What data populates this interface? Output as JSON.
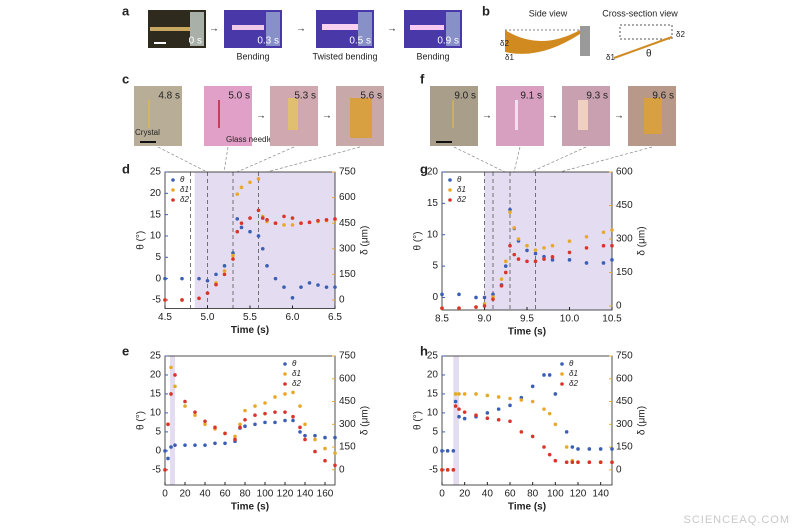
{
  "figure": {
    "a": {
      "label": "a",
      "times": [
        "0 s",
        "0.3 s",
        "0.5 s",
        "0.9 s"
      ],
      "captions": [
        "Bending",
        "Twisted bending",
        "Bending"
      ]
    },
    "b": {
      "label": "b",
      "side": "Side view",
      "cross": "Cross-section view",
      "side_symbols": [
        "δ2",
        "δ1"
      ],
      "cross_symbols": [
        "δ1",
        "θ",
        "δ2"
      ]
    },
    "c": {
      "label": "c",
      "times": [
        "4.8 s",
        "5.0 s",
        "5.3 s",
        "5.6 s"
      ],
      "crystal": "Crystal",
      "needle": "Glass needle"
    },
    "f": {
      "label": "f",
      "times": [
        "9.0 s",
        "9.1 s",
        "9.3 s",
        "9.6 s"
      ]
    },
    "watermark": "SCIENCEAQ.COM"
  },
  "chart_data": [
    {
      "type": "scatter",
      "panel": "d",
      "xlabel": "Time (s)",
      "ylabel": "θ (°)",
      "y2label": "δ (μm)",
      "legend": "upper left",
      "x": [
        4.5,
        4.7,
        4.9,
        5.0,
        5.1,
        5.2,
        5.3,
        5.35,
        5.4,
        5.5,
        5.6,
        5.65,
        5.7,
        5.8,
        5.9,
        6.0,
        6.1,
        6.2,
        6.3,
        6.4,
        6.5
      ],
      "series": [
        {
          "name": "θ",
          "color": "#3a5fb5",
          "values": [
            0,
            0,
            0,
            -0.5,
            1,
            3,
            6,
            14,
            12,
            11,
            10,
            7,
            3,
            0,
            -2,
            -4.5,
            -2,
            -1,
            -1.5,
            -2,
            -2
          ]
        },
        {
          "name": "δ1",
          "color": "#e8a92a",
          "axis": "y2",
          "values": [
            0,
            0,
            10,
            40,
            100,
            170,
            260,
            620,
            660,
            690,
            710,
            490,
            460,
            450,
            440,
            440,
            450,
            455,
            460,
            465,
            470
          ]
        },
        {
          "name": "δ2",
          "color": "#d9352b",
          "axis": "y2",
          "values": [
            0,
            0,
            10,
            40,
            90,
            150,
            240,
            400,
            450,
            480,
            525,
            480,
            470,
            450,
            490,
            480,
            450,
            455,
            465,
            470,
            475
          ]
        }
      ],
      "xlim": [
        4.5,
        6.5
      ],
      "xticks": [
        {
          "value": 4.5,
          "label": "4.5"
        },
        {
          "value": 5,
          "label": "5.0"
        },
        {
          "value": 5.5,
          "label": "5.5"
        },
        {
          "value": 6,
          "label": "6.0"
        },
        {
          "value": 6.5,
          "label": "6.5"
        }
      ],
      "ylim": [
        -7,
        25
      ],
      "yticks": [
        -5,
        0,
        5,
        10,
        15,
        20,
        25
      ],
      "y2lim": [
        -50,
        750
      ],
      "y2ticks": [
        0,
        150,
        300,
        450,
        600,
        750
      ],
      "shade": [
        4.85,
        6.5
      ],
      "vlines": [
        4.8,
        5.0,
        5.3,
        5.6
      ]
    },
    {
      "type": "scatter",
      "panel": "g",
      "xlabel": "Time (s)",
      "ylabel": "θ (°)",
      "y2label": "δ (μm)",
      "legend": "upper left",
      "x": [
        8.5,
        8.7,
        8.9,
        9.0,
        9.1,
        9.2,
        9.25,
        9.3,
        9.35,
        9.4,
        9.5,
        9.6,
        9.7,
        9.8,
        10.0,
        10.2,
        10.4,
        10.5
      ],
      "series": [
        {
          "name": "θ",
          "color": "#3a5fb5",
          "values": [
            0.5,
            0.5,
            0,
            0,
            0.5,
            2,
            5,
            14,
            11,
            9,
            7.5,
            7,
            6.5,
            6,
            6,
            5.5,
            5.5,
            6
          ]
        },
        {
          "name": "δ1",
          "color": "#e8a92a",
          "axis": "y2",
          "values": [
            -10,
            -10,
            -5,
            10,
            40,
            120,
            200,
            420,
            350,
            300,
            270,
            250,
            260,
            270,
            290,
            310,
            330,
            340
          ]
        },
        {
          "name": "δ2",
          "color": "#d9352b",
          "axis": "y2",
          "values": [
            -10,
            -10,
            -5,
            0,
            30,
            90,
            150,
            270,
            230,
            210,
            200,
            200,
            210,
            220,
            240,
            260,
            270,
            270
          ]
        }
      ],
      "xlim": [
        8.5,
        10.5
      ],
      "xticks": [
        {
          "value": 8.5,
          "label": "8.5"
        },
        {
          "value": 9,
          "label": "9.0"
        },
        {
          "value": 9.5,
          "label": "9.5"
        },
        {
          "value": 10,
          "label": "10.0"
        },
        {
          "value": 10.5,
          "label": "10.5"
        }
      ],
      "ylim": [
        -2,
        20
      ],
      "yticks": [
        0,
        5,
        10,
        15,
        20
      ],
      "y2lim": [
        -18,
        600
      ],
      "y2ticks": [
        0,
        150,
        300,
        450,
        600
      ],
      "shade": [
        9.0,
        10.5
      ],
      "vlines": [
        9.0,
        9.1,
        9.3,
        9.6
      ]
    },
    {
      "type": "scatter",
      "panel": "e",
      "xlabel": "Time (s)",
      "ylabel": "θ (°)",
      "y2label": "δ (μm)",
      "legend": "upper right",
      "x": [
        0,
        3,
        6,
        10,
        20,
        30,
        40,
        50,
        60,
        70,
        75,
        80,
        90,
        100,
        110,
        120,
        128,
        135,
        140,
        150,
        160,
        170
      ],
      "series": [
        {
          "name": "θ",
          "color": "#3a5fb5",
          "values": [
            0,
            -2,
            1,
            1.5,
            1.5,
            1.5,
            1.5,
            2,
            2,
            2.5,
            6,
            6.5,
            7,
            7.5,
            7.5,
            8,
            8,
            5,
            4,
            4,
            3.5,
            3.5
          ]
        },
        {
          "name": "δ1",
          "color": "#e8a92a",
          "axis": "y2",
          "values": [
            0,
            300,
            675,
            550,
            420,
            360,
            300,
            270,
            240,
            220,
            300,
            390,
            420,
            440,
            480,
            500,
            510,
            420,
            300,
            200,
            140,
            110
          ]
        },
        {
          "name": "δ2",
          "color": "#d9352b",
          "axis": "y2",
          "values": [
            0,
            300,
            500,
            625,
            450,
            380,
            320,
            280,
            240,
            200,
            280,
            330,
            360,
            370,
            380,
            380,
            350,
            280,
            200,
            120,
            60,
            30
          ]
        }
      ],
      "xlim": [
        0,
        170
      ],
      "xticks": [
        0,
        20,
        40,
        60,
        80,
        100,
        120,
        140,
        160
      ],
      "ylim": [
        -9,
        25
      ],
      "yticks": [
        -5,
        0,
        5,
        10,
        15,
        20,
        25
      ],
      "y2lim": [
        -100,
        750
      ],
      "y2ticks": [
        0,
        150,
        300,
        450,
        600,
        750
      ],
      "shade": [
        5,
        10
      ],
      "vlines": []
    },
    {
      "type": "scatter",
      "panel": "h",
      "xlabel": "Time (s)",
      "ylabel": "θ (°)",
      "y2label": "δ (μm)",
      "legend": "upper right",
      "x": [
        0,
        5,
        10,
        12,
        15,
        20,
        30,
        40,
        50,
        60,
        70,
        80,
        90,
        95,
        100,
        110,
        115,
        120,
        130,
        140,
        150
      ],
      "series": [
        {
          "name": "θ",
          "color": "#3a5fb5",
          "values": [
            0,
            0,
            0,
            13,
            9,
            8.5,
            9,
            10,
            11,
            12,
            14,
            17,
            20,
            20,
            15,
            5,
            1,
            0.5,
            0.5,
            0.5,
            0.5
          ]
        },
        {
          "name": "δ1",
          "color": "#e8a92a",
          "axis": "y2",
          "values": [
            0,
            0,
            0,
            500,
            500,
            500,
            500,
            490,
            480,
            470,
            460,
            450,
            400,
            370,
            300,
            150,
            60,
            50,
            50,
            50,
            50
          ]
        },
        {
          "name": "δ2",
          "color": "#d9352b",
          "axis": "y2",
          "values": [
            0,
            0,
            0,
            420,
            400,
            380,
            360,
            340,
            330,
            320,
            250,
            220,
            150,
            100,
            60,
            50,
            50,
            50,
            50,
            50,
            50
          ]
        }
      ],
      "xlim": [
        0,
        150
      ],
      "xticks": [
        0,
        20,
        40,
        60,
        80,
        100,
        120,
        140
      ],
      "ylim": [
        -9,
        25
      ],
      "yticks": [
        -5,
        0,
        5,
        10,
        15,
        20,
        25
      ],
      "y2lim": [
        -100,
        750
      ],
      "y2ticks": [
        0,
        150,
        300,
        450,
        600,
        750
      ],
      "shade": [
        10,
        15
      ],
      "vlines": []
    }
  ]
}
